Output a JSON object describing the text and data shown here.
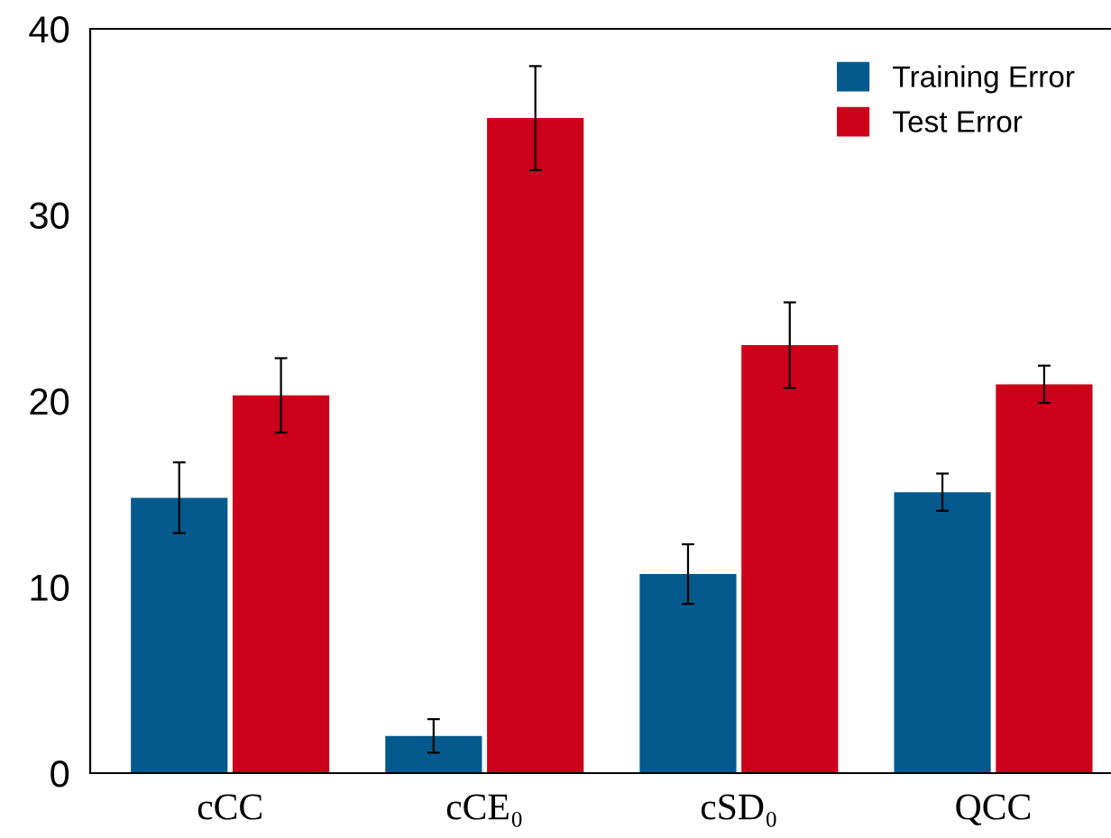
{
  "chart_data": {
    "type": "bar",
    "categories": [
      "cCC",
      "cCE₀",
      "cSD₀",
      "QCC"
    ],
    "series": [
      {
        "name": "Training Error",
        "color": "#045a8d",
        "values": [
          14.8,
          2.0,
          10.7,
          15.1
        ],
        "errors": [
          1.9,
          0.9,
          1.6,
          1.0
        ]
      },
      {
        "name": "Test Error",
        "color": "#cc001a",
        "values": [
          20.3,
          35.2,
          23.0,
          20.9
        ],
        "errors": [
          2.0,
          2.8,
          2.3,
          1.0
        ]
      }
    ],
    "ylim": [
      0,
      40
    ],
    "yticks": [
      0,
      10,
      20,
      30,
      40
    ],
    "grid": false,
    "legend": "top right"
  }
}
